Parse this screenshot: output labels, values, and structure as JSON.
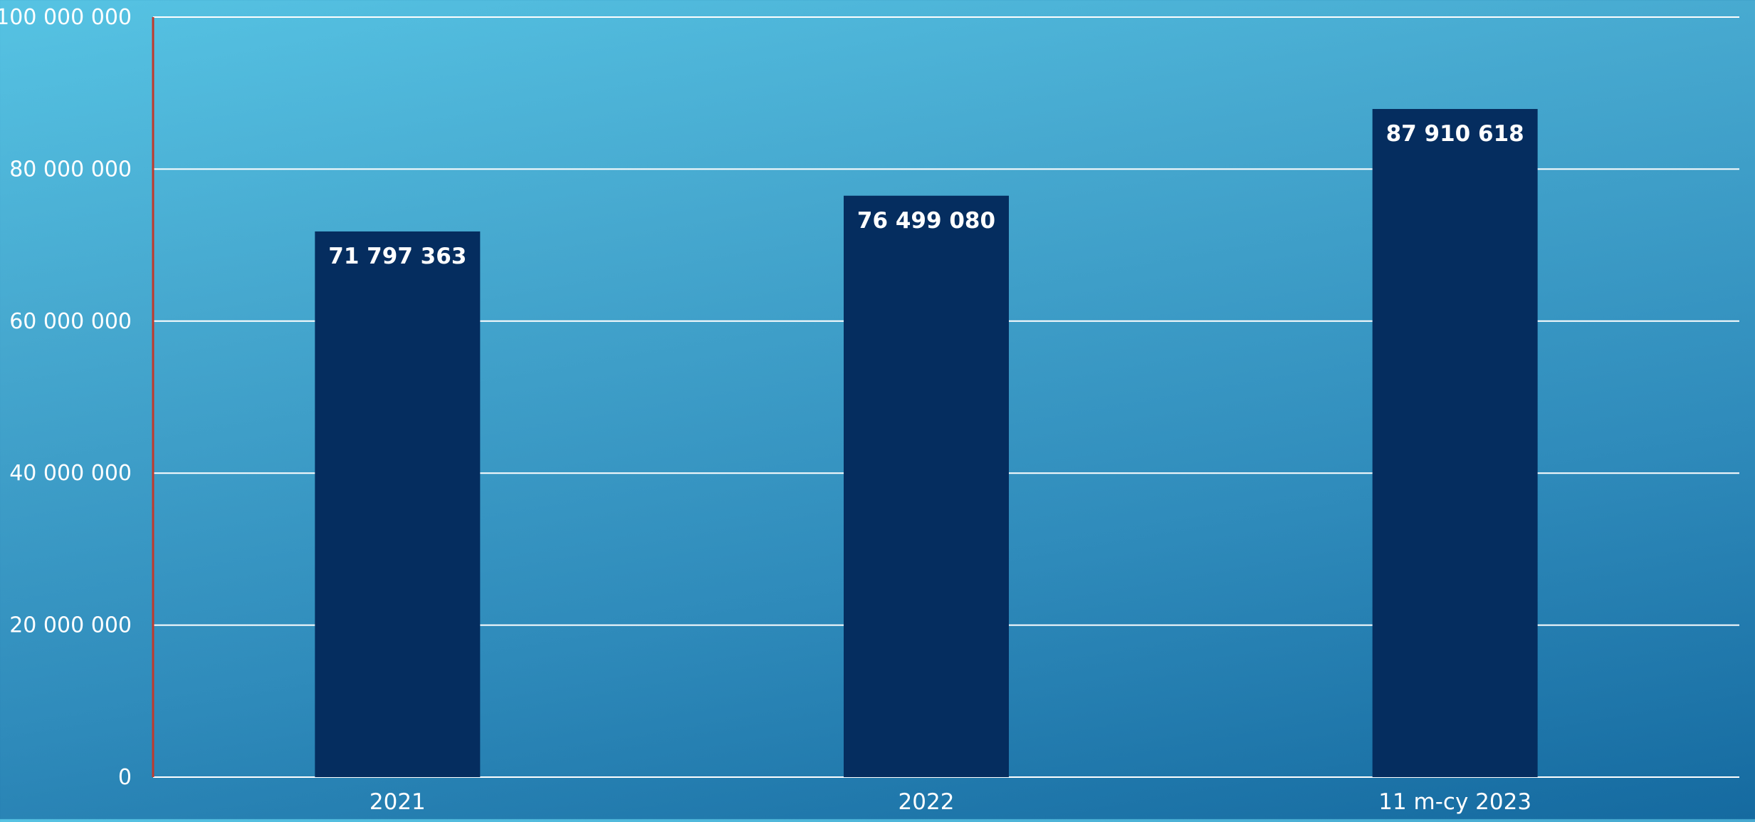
{
  "chart_data": {
    "type": "bar",
    "title": "",
    "xlabel": "",
    "ylabel": "",
    "categories": [
      "2021",
      "2022",
      "11 m-cy 2023"
    ],
    "values": [
      71797363,
      76499080,
      87910618
    ],
    "value_labels": [
      "71 797 363",
      "76 499 080",
      "87 910 618"
    ],
    "ylim": [
      0,
      100000000
    ],
    "yticks": [
      0,
      20000000,
      40000000,
      60000000,
      80000000,
      100000000
    ],
    "ytick_labels": [
      "0",
      "20 000 000",
      "40 000 000",
      "60 000 000",
      "80 000 000",
      "100 000 000"
    ],
    "grid": true,
    "legend": "none",
    "colors": {
      "bar": "#052d5f",
      "gridline": "#ffffff",
      "text": "#ffffff",
      "y_axis_line": "#c0392b"
    }
  }
}
